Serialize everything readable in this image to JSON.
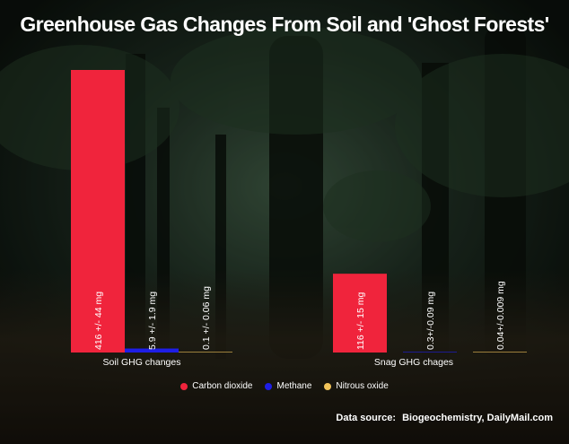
{
  "title": "Greenhouse Gas Changes From Soil and 'Ghost Forests'",
  "source": {
    "label": "Data source:",
    "text": "Biogeochemistry, DailyMail.com"
  },
  "colors": {
    "carbon_dioxide": "#f0243c",
    "methane": "#1e1ee6",
    "nitrous_oxide": "#f2c45a"
  },
  "chart_data": {
    "type": "bar",
    "categories": [
      "Soil GHG changes",
      "Snag GHG chages"
    ],
    "series": [
      {
        "name": "Carbon dioxide",
        "values": [
          416,
          116
        ],
        "labels": [
          "416 +/- 44 mg",
          "116 +/- 15 mg"
        ]
      },
      {
        "name": "Methane",
        "values": [
          5.9,
          0.3
        ],
        "labels": [
          "5.9 +/- 1.9 mg",
          "0.3+/-0.09 mg"
        ]
      },
      {
        "name": "Nitrous oxide",
        "values": [
          0.1,
          0.04
        ],
        "labels": [
          "0.1 +/- 0.06 mg",
          "0.04+/-0.009 mg"
        ]
      }
    ],
    "ylim": [
      0,
      416
    ],
    "grid": false,
    "legend": "bottom"
  }
}
